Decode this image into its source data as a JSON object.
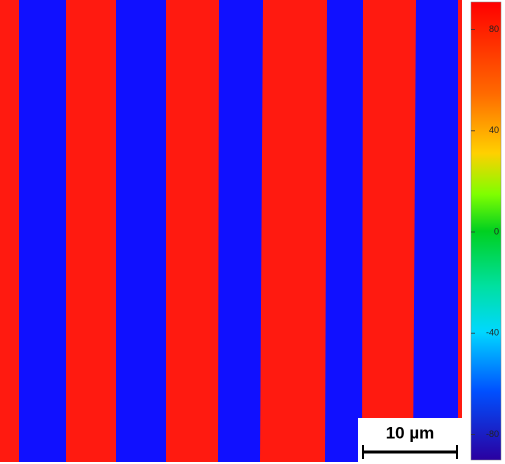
{
  "colorbar": {
    "ticks": [
      80,
      40,
      0,
      -40,
      -80
    ]
  },
  "scale_bar": {
    "label": "10 µm"
  }
}
